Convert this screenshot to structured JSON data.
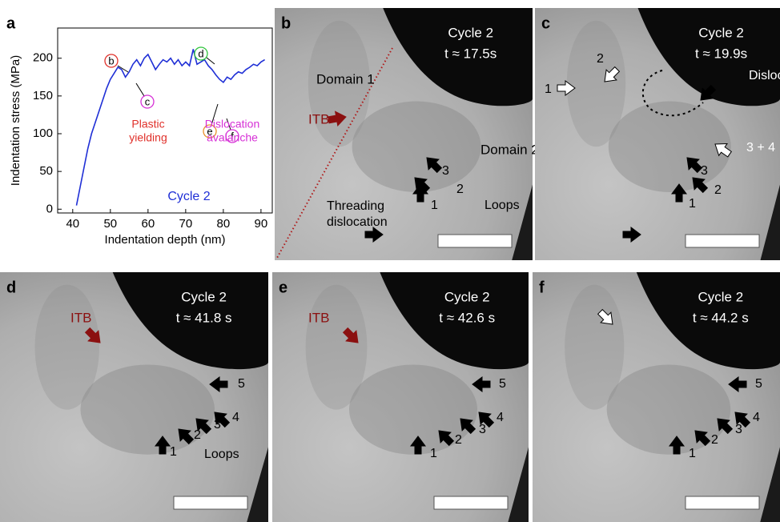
{
  "chart_data": {
    "type": "line",
    "panel_label": "a",
    "x_label": "Indentation depth (nm)",
    "y_label": "Indentation stress (MPa)",
    "x": [
      41,
      42,
      43,
      44,
      45,
      46,
      47,
      48,
      49,
      50,
      51,
      52,
      53,
      54,
      55,
      56,
      57,
      58,
      59,
      60,
      61,
      62,
      63,
      64,
      65,
      66,
      67,
      68,
      69,
      70,
      71,
      72,
      73,
      74,
      75,
      76,
      77,
      78,
      79,
      80,
      81,
      82,
      83,
      84,
      85,
      86,
      87,
      88,
      89,
      90,
      91
    ],
    "values": [
      5,
      30,
      55,
      80,
      100,
      115,
      130,
      145,
      160,
      172,
      180,
      188,
      185,
      175,
      182,
      192,
      198,
      190,
      200,
      205,
      195,
      185,
      192,
      198,
      195,
      200,
      192,
      198,
      190,
      195,
      190,
      212,
      192,
      195,
      198,
      190,
      185,
      178,
      172,
      168,
      175,
      172,
      178,
      182,
      180,
      185,
      188,
      192,
      190,
      195,
      198
    ],
    "color": "#1f2fd6",
    "xlim": [
      36,
      93
    ],
    "ylim": [
      -5,
      240
    ],
    "xticks": [
      40,
      50,
      60,
      70,
      80,
      90
    ],
    "yticks": [
      0,
      50,
      100,
      150,
      200
    ],
    "annotations": [
      "b",
      "c",
      "d",
      "e",
      "f",
      "Plastic",
      "yielding",
      "Dislocation",
      "avalanche",
      "Cycle 2"
    ]
  },
  "panels": [
    {
      "label": "b",
      "cycle": "Cycle 2",
      "time": "t ≈ 17.5s",
      "notes": [
        "Domain 1",
        "ITB",
        "Domain 2",
        "3",
        "2",
        "1",
        "Loops",
        "Threading",
        "dislocation"
      ]
    },
    {
      "label": "c",
      "cycle": "Cycle 2",
      "time": "t ≈ 19.9s",
      "notes": [
        "1",
        "2",
        "Dislocation",
        "3 + 4",
        "3",
        "2",
        "1"
      ]
    },
    {
      "label": "d",
      "cycle": "Cycle 2",
      "time": "t ≈ 41.8 s",
      "notes": [
        "ITB",
        "5",
        "4",
        "3",
        "2",
        "1",
        "Loops"
      ]
    },
    {
      "label": "e",
      "cycle": "Cycle 2",
      "time": "t ≈ 42.6 s",
      "notes": [
        "ITB",
        "5",
        "4",
        "3",
        "2",
        "1"
      ]
    },
    {
      "label": "f",
      "cycle": "Cycle 2",
      "time": "t ≈ 44.2 s",
      "notes": [
        "5",
        "4",
        "3",
        "2",
        "1"
      ]
    }
  ]
}
